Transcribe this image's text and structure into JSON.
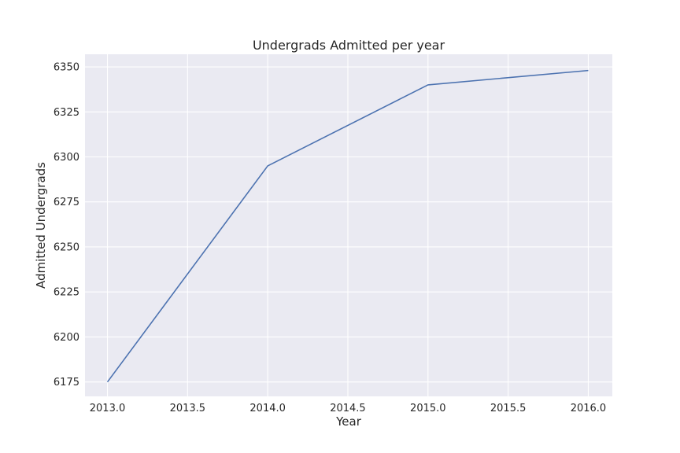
{
  "chart_data": {
    "type": "line",
    "title": "Undergrads Admitted per year",
    "xlabel": "Year",
    "ylabel": "Admitted Undergrads",
    "x": [
      2013,
      2014,
      2015,
      2016
    ],
    "series": [
      {
        "values": [
          6175,
          6295,
          6340,
          6348
        ]
      }
    ],
    "xlim": [
      2012.86,
      2016.15
    ],
    "ylim": [
      6167,
      6357
    ],
    "xticks": [
      2013.0,
      2013.5,
      2014.0,
      2014.5,
      2015.0,
      2015.5,
      2016.0
    ],
    "xtick_labels": [
      "2013.0",
      "2013.5",
      "2014.0",
      "2014.5",
      "2015.0",
      "2015.5",
      "2016.0"
    ],
    "yticks": [
      6175,
      6200,
      6225,
      6250,
      6275,
      6300,
      6325,
      6350
    ],
    "ytick_labels": [
      "6175",
      "6200",
      "6225",
      "6250",
      "6275",
      "6300",
      "6325",
      "6350"
    ],
    "grid": true,
    "legend": "none",
    "colors": {
      "line": "#4c72b0",
      "plot_background": "#eaeaf2",
      "grid": "#ffffff",
      "text": "#262626"
    }
  }
}
